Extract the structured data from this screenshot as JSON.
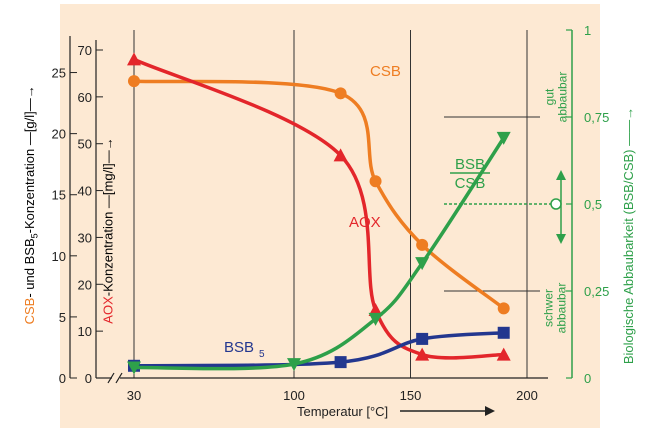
{
  "colors": {
    "background": "#fde9d3",
    "csb": "#ee7d22",
    "aox": "#e3262b",
    "bsb": "#23378f",
    "ratio": "#2ea04a",
    "axis": "#222222",
    "green_text": "#2ea04a"
  },
  "chart_data": {
    "type": "line",
    "xlabel": "Temperatur [°C]",
    "x_ticks": [
      30,
      100,
      150,
      200
    ],
    "x_axis_break": true,
    "grid": "vertical lines at 100, 150, 200",
    "y_axes": {
      "csb_bsb": {
        "label_parts": [
          "CSB",
          "- und ",
          "BSB",
          "5",
          "-Konzentration",
          " —[g/l]—→"
        ],
        "ticks": [
          0,
          5,
          10,
          15,
          20,
          25
        ],
        "range": [
          0,
          27.5
        ]
      },
      "aox": {
        "label_parts": [
          "AOX",
          "-Konzentration",
          " —[mg/l]—→"
        ],
        "ticks": [
          0,
          10,
          20,
          30,
          40,
          50,
          60,
          70
        ],
        "range": [
          0,
          70
        ]
      },
      "ratio": {
        "label_parts": [
          "Biologische Abbaubarkeit",
          "(BSB/CSB)",
          "——→"
        ],
        "ticks": [
          "0",
          "0,25",
          "0,5",
          "0,75",
          "1"
        ],
        "tick_values": [
          0,
          0.25,
          0.5,
          0.75,
          1
        ],
        "range": [
          0,
          1
        ]
      }
    },
    "series": [
      {
        "name": "CSB",
        "axis": "csb_bsb",
        "marker": "circle",
        "x": [
          30,
          120,
          135,
          155,
          190
        ],
        "y": [
          24.3,
          23.3,
          16.1,
          10.9,
          5.7
        ]
      },
      {
        "name": "AOX",
        "axis": "aox",
        "marker": "triangle-up",
        "x": [
          30,
          120,
          135,
          155,
          190
        ],
        "y": [
          68,
          47.5,
          14.5,
          5,
          5
        ]
      },
      {
        "name": "BSB5",
        "axis": "csb_bsb",
        "marker": "square",
        "x": [
          30,
          120,
          155,
          190
        ],
        "y": [
          1,
          1.3,
          3.2,
          3.7
        ]
      },
      {
        "name": "BSB/CSB",
        "axis": "ratio",
        "marker": "triangle-down",
        "x": [
          30,
          100,
          135,
          155,
          190
        ],
        "y": [
          0.03,
          0.04,
          0.17,
          0.33,
          0.69
        ]
      }
    ],
    "labels": {
      "csb": "CSB",
      "aox": "AOX",
      "bsb_main": "BSB",
      "bsb_sub": "5",
      "ratio_num": "BSB",
      "ratio_den": "CSB",
      "gut": "gut",
      "abbaubar_top": "abbaubar",
      "schwer": "schwer",
      "abbaubar_bottom": "abbaubar"
    },
    "reference_lines": [
      0.75,
      0.5,
      0.25
    ],
    "legend": "none"
  }
}
